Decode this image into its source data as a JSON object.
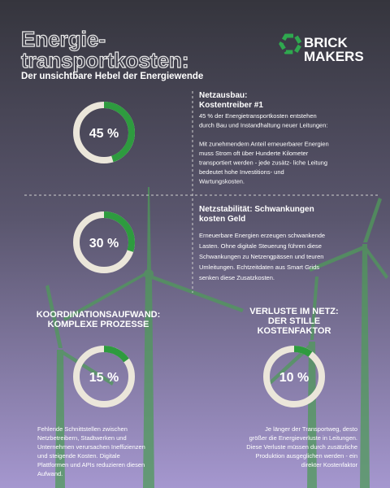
{
  "header": {
    "title_lines": [
      "Energie-",
      "transportkosten:"
    ],
    "subtitle": "Der unsichtbare Hebel der Energiewende",
    "logo_lines": [
      "BRICK",
      "MAKERS"
    ]
  },
  "sections": [
    {
      "heading_lines": [
        "Netzausbau:",
        "Kostentreiber #1"
      ],
      "value": 45,
      "value_label": "45 %",
      "body_lines": [
        "45 % der Energietransportkosten entstehen",
        "durch Bau und Instandhaltung neuer Leitungen:",
        "",
        "Mit zunehmendem Anteil erneuerbarer Energien",
        "muss Strom oft über Hunderte Kilometer",
        "transportiert werden - jede zusätz- liche Leitung",
        "bedeutet hohe Investitions- und",
        "Wartungskosten."
      ]
    },
    {
      "heading_lines": [
        "Netzstabilität: Schwankungen",
        "kosten Geld"
      ],
      "value": 30,
      "value_label": "30 %",
      "body_lines": [
        "Erneuerbare Energien erzeugen schwankende",
        "Lasten. Ohne digitale Steuerung führen diese",
        "Schwankungen zu Netzengpässen und teuren",
        "Umleitungen. Echtzeitdaten aus Smart Grids",
        "senken diese Zusatzkosten."
      ]
    },
    {
      "heading_lines": [
        "KOORDINATIONSAUFWAND:",
        "KOMPLEXE PROZESSE"
      ],
      "value": 15,
      "value_label": "15 %",
      "body_lines": [
        "Fehlende Schnittstellen zwischen",
        "Netzbetreibern, Stadtwerken und",
        "Unternehmen verursachen Ineffizienzen",
        "und steigende Kosten. Digitale",
        "Plattformen und APIs reduzieren diesen",
        "Aufwand."
      ]
    },
    {
      "heading_lines": [
        "VERLUSTE IM NETZ:",
        "DER STILLE",
        "KOSTENFAKTOR"
      ],
      "value": 10,
      "value_label": "10 %",
      "body_lines": [
        "Je länger der Transportweg, desto",
        "größer die Energieverluste in Leitungen.",
        "Diese Verluste müssen durch zusätzliche",
        "Produktion ausgeglichen werden - ein",
        "direkter Kostenfaktor"
      ]
    }
  ]
}
